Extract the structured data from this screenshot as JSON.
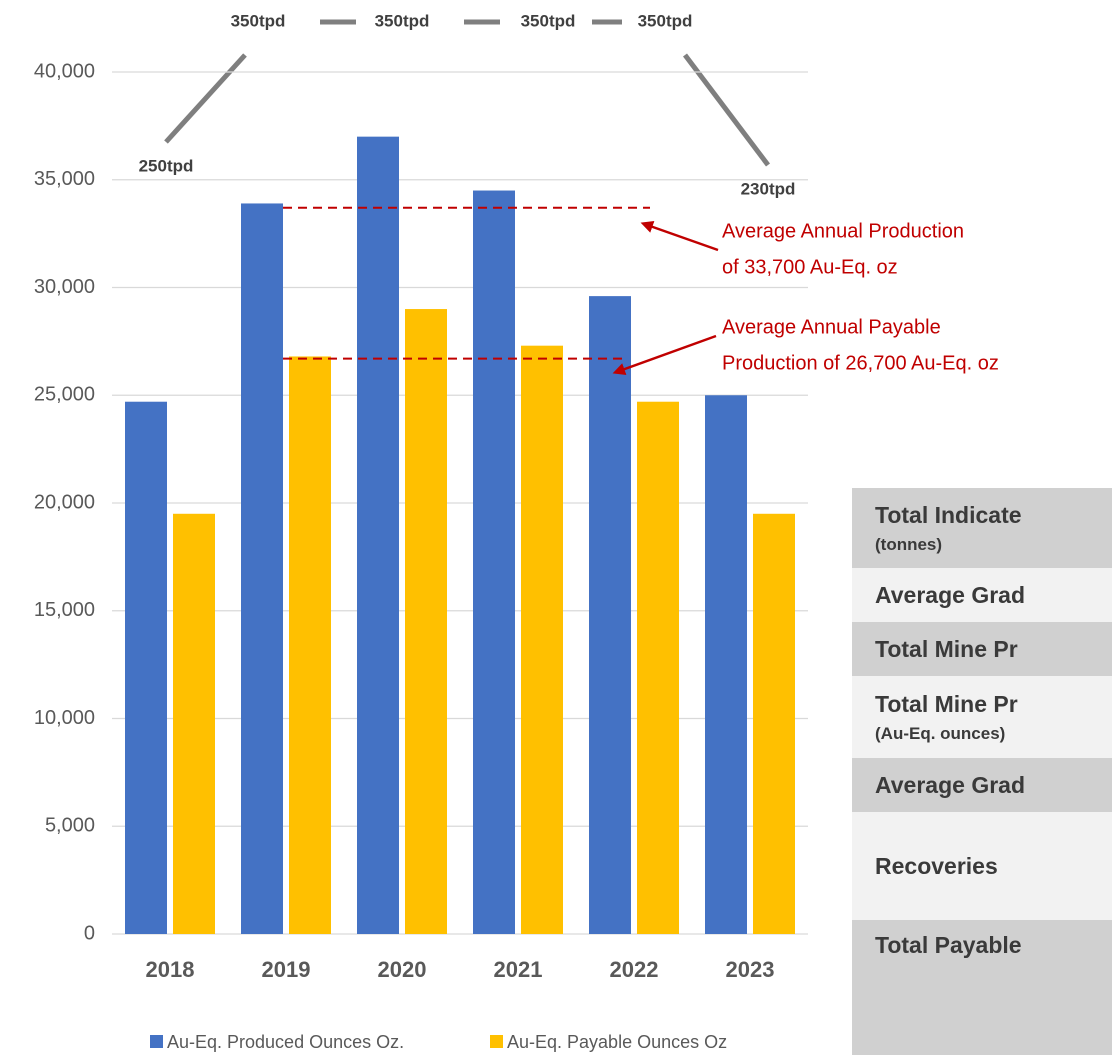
{
  "chart_data": {
    "type": "bar",
    "categories": [
      "2018",
      "2019",
      "2020",
      "2021",
      "2022",
      "2023"
    ],
    "series": [
      {
        "name": "Au-Eq. Produced Ounces Oz.",
        "color": "#4472c4",
        "values": [
          24700,
          33900,
          37000,
          34500,
          29600,
          25000
        ]
      },
      {
        "name": "Au-Eq. Payable Ounces  Oz",
        "color": "#ffc000",
        "values": [
          19500,
          26800,
          29000,
          27300,
          24700,
          19500
        ]
      }
    ],
    "ylim": [
      0,
      40000
    ],
    "yticks": [
      0,
      {
        "value": 5000,
        "label": "5,000"
      },
      {
        "value": 10000,
        "label": "10,000"
      },
      {
        "value": 15000,
        "label": "15,000"
      },
      {
        "value": 20000,
        "label": "20,000"
      },
      {
        "value": 25000,
        "label": "25,000"
      },
      {
        "value": 30000,
        "label": "30,000"
      },
      {
        "value": 35000,
        "label": "35,000"
      },
      {
        "value": 40000,
        "label": "40,000"
      }
    ],
    "grid": true,
    "legend": "bottom",
    "reference_lines": [
      {
        "value": 33700,
        "color": "#c00000",
        "label": [
          "Average Annual Production",
          "of 33,700 Au-Eq. oz"
        ]
      },
      {
        "value": 26700,
        "color": "#c00000",
        "label": [
          "Average Annual Payable",
          "Production of 26,700 Au-Eq. oz"
        ]
      }
    ],
    "annotations": [
      "350tpd",
      "350tpd",
      "350tpd",
      "350tpd",
      "250tpd",
      "230tpd"
    ]
  },
  "table": {
    "rows": [
      {
        "label": "Total Indicate",
        "sublabel": "(tonnes)"
      },
      {
        "label": "Average Grad"
      },
      {
        "label": "Total Mine Pr"
      },
      {
        "label": "Total Mine Pr",
        "sublabel": "(Au-Eq. ounces)"
      },
      {
        "label": "Average Grad"
      },
      {
        "label": "Recoveries"
      },
      {
        "label": "Total Payable"
      }
    ]
  }
}
